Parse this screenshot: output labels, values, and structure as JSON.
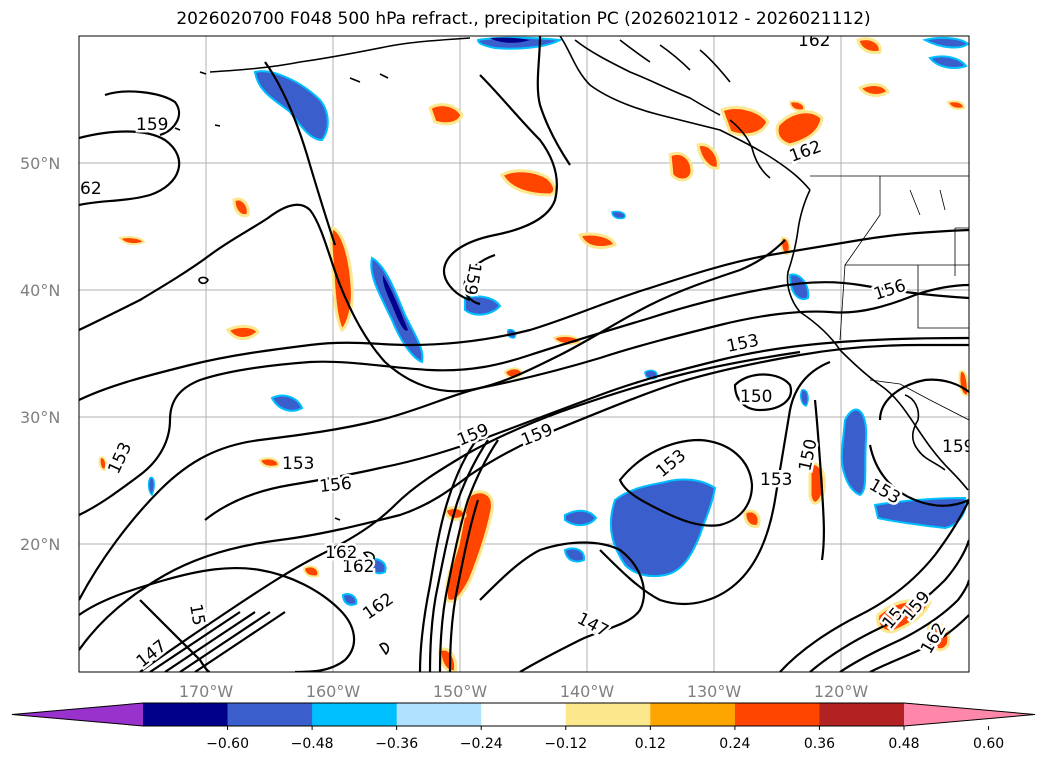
{
  "title": "2026020700 F048 500 hPa refract., precipitation PC (2026021012 - 2026021112)",
  "map": {
    "lat_labels": [
      "50°N",
      "40°N",
      "30°N",
      "20°N"
    ],
    "lon_labels": [
      "170°W",
      "160°W",
      "150°W",
      "140°W",
      "130°W",
      "120°W"
    ],
    "contour_labels": [
      "162",
      "159",
      "62",
      "162",
      "159",
      "156",
      "153",
      "150",
      "153",
      "153",
      "156",
      "159",
      "159",
      "153",
      "150",
      "153",
      "159",
      "162",
      "162",
      "147",
      "147",
      "15",
      "15",
      "159",
      "162",
      "162",
      "153"
    ]
  },
  "colorbar": {
    "colors": [
      "#9932cc",
      "#00008b",
      "#3a5fcd",
      "#00bfff",
      "#b0e2ff",
      "#ffffff",
      "#fbe78c",
      "#ffa500",
      "#ff4500",
      "#b22222",
      "#ff88aa"
    ],
    "tick_labels": [
      "−0.60",
      "−0.48",
      "−0.36",
      "−0.24",
      "−0.12",
      "0.12",
      "0.24",
      "0.36",
      "0.48",
      "0.60"
    ]
  }
}
